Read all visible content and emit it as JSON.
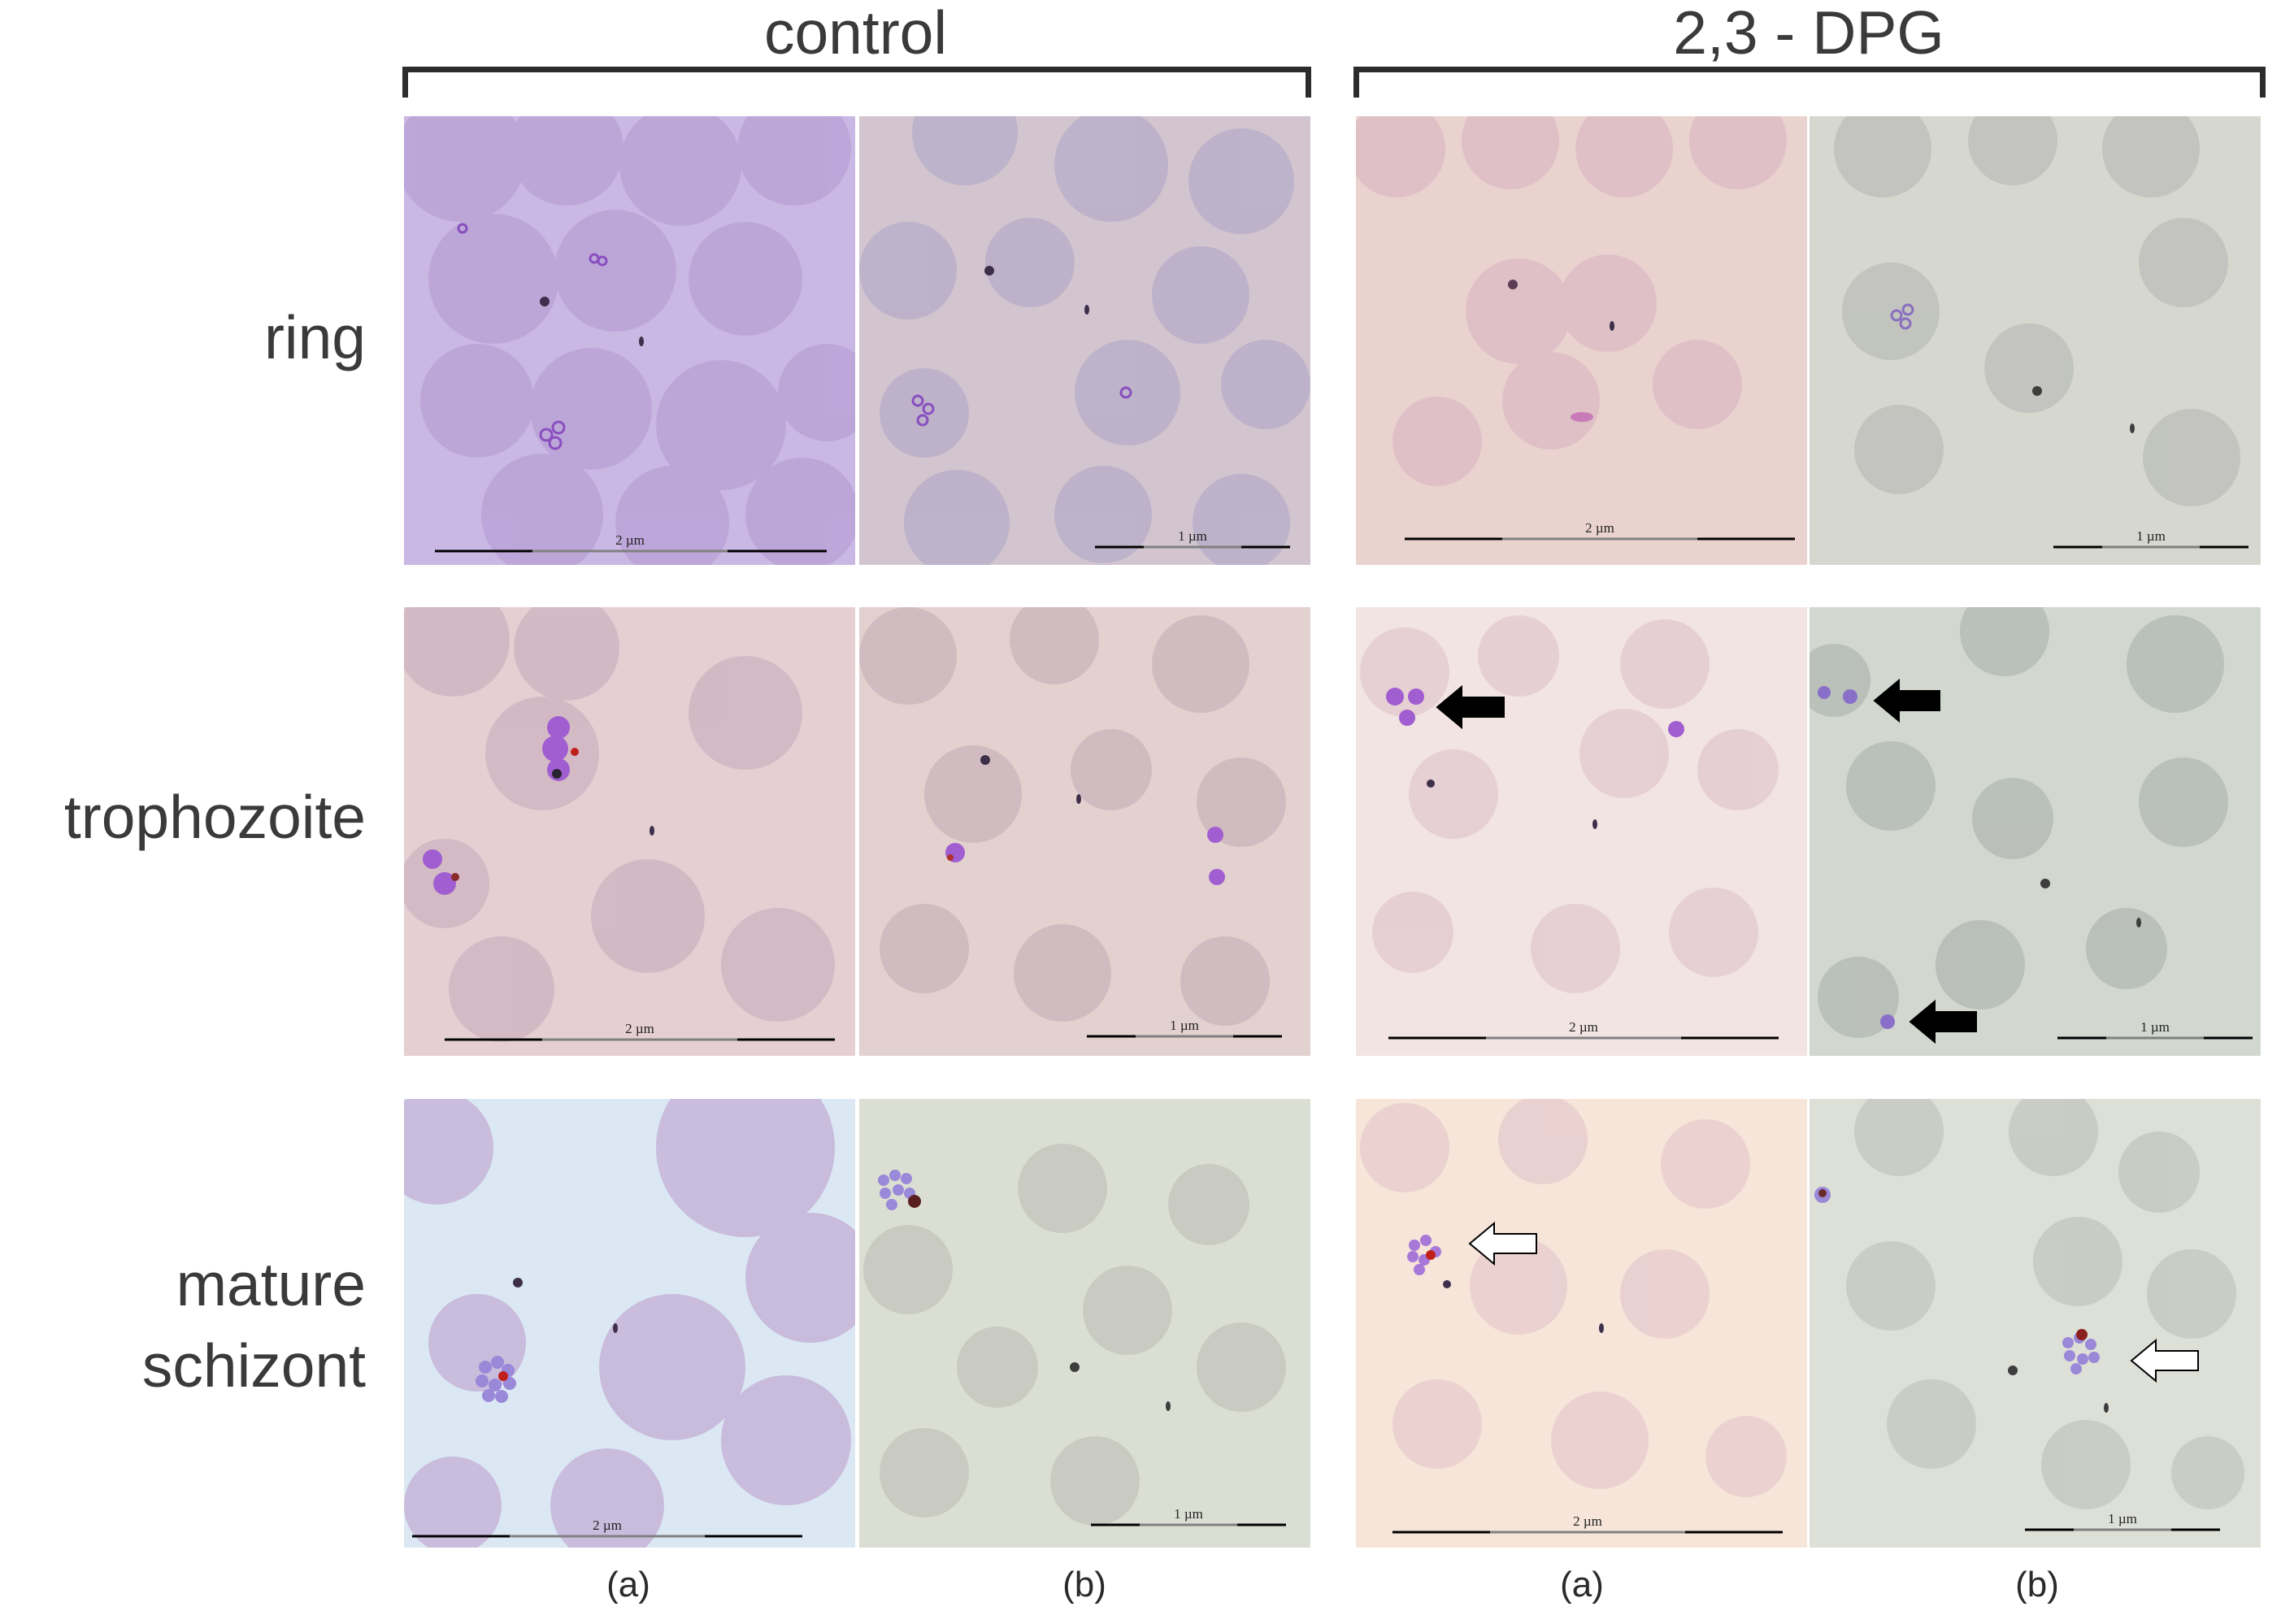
{
  "figure": {
    "group_labels": [
      "control",
      "2,3 - DPG"
    ],
    "row_labels": [
      [
        "ring"
      ],
      [
        "trophozoite"
      ],
      [
        "mature",
        "schizont"
      ]
    ],
    "column_labels": [
      "(a)",
      "(b)",
      "(a)",
      "(b)"
    ],
    "scale_bars": {
      "a": "2 µm",
      "b": "1 µm"
    },
    "panel_tints": {
      "control_a_ring": "#cab8e4",
      "control_b_ring": "#d2c5cf",
      "dpg_a_ring": "#ead3cf",
      "dpg_b_ring": "#d6d8cf",
      "control_a_troph": "#e6cfd3",
      "control_b_troph": "#e3d1cf",
      "dpg_a_troph": "#f2e4e2",
      "dpg_b_troph": "#d2d7cf",
      "control_a_schiz": "#dbe8f3",
      "control_b_schiz": "#dbdfd3",
      "dpg_a_schiz": "#f6e5d8",
      "dpg_b_schiz": "#dde0d7"
    },
    "arrow_colors": {
      "filled": "#000000",
      "outline": "#ffffff"
    }
  }
}
